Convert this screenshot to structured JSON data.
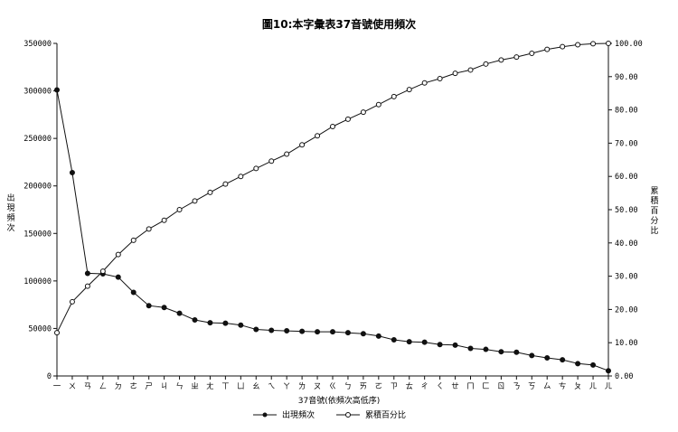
{
  "chart_data": {
    "type": "line",
    "title": "圖10:本字彙表37音號使用頻次",
    "xlabel": "37音號(依頻次高低序)",
    "ylabel_left": "出現頻次",
    "ylabel_right": "累積百分比",
    "categories": [
      "一",
      "ㄨ",
      "ㄢ",
      "ㄥ",
      "ㄉ",
      "ㄜ",
      "ㄕ",
      "ㄐ",
      "ㄣ",
      "ㄓ",
      "ㄤ",
      "ㄒ",
      "ㄩ",
      "ㄠ",
      "ㄟ",
      "ㄚ",
      "ㄌ",
      "ㄡ",
      "ㄍ",
      "ㄅ",
      "ㄞ",
      "ㄛ",
      "ㄗ",
      "ㄊ",
      "ㄔ",
      "ㄑ",
      "ㄝ",
      "ㄇ",
      "ㄈ",
      "ㄖ",
      "ㄋ",
      "ㄎ",
      "ㄙ",
      "ㄘ",
      "ㄆ",
      "ㄦ",
      "ㄦ"
    ],
    "ylim_left": [
      0,
      350000
    ],
    "yticks_left": [
      "0",
      "50000",
      "100000",
      "150000",
      "200000",
      "250000",
      "300000",
      "350000"
    ],
    "ylim_right": [
      0,
      100
    ],
    "yticks_right": [
      "0.00",
      "10.00",
      "20.00",
      "30.00",
      "40.00",
      "50.00",
      "60.00",
      "70.00",
      "80.00",
      "90.00",
      "100.00"
    ],
    "series": [
      {
        "name": "出現頻次",
        "axis": "left",
        "marker": "filled",
        "values": [
          301000,
          214000,
          108000,
          107500,
          104000,
          88000,
          74000,
          72000,
          66000,
          59000,
          56000,
          55500,
          53500,
          49000,
          48000,
          47500,
          47000,
          46500,
          46500,
          45500,
          44500,
          42000,
          38000,
          36000,
          35500,
          33000,
          32500,
          29000,
          28000,
          25500,
          25000,
          21500,
          19000,
          17000,
          13000,
          11500,
          5500
        ]
      },
      {
        "name": "累積百分比",
        "axis": "right",
        "marker": "open",
        "values": [
          13.0,
          22.3,
          27.0,
          31.5,
          36.5,
          40.8,
          44.2,
          46.8,
          50.0,
          52.6,
          55.2,
          57.7,
          60.0,
          62.4,
          64.6,
          66.7,
          69.5,
          72.2,
          75.0,
          77.2,
          79.3,
          81.6,
          84.0,
          86.1,
          88.1,
          89.4,
          91.0,
          92.0,
          93.8,
          95.0,
          95.9,
          97.0,
          98.2,
          99.0,
          99.6,
          99.9,
          100.0
        ]
      }
    ],
    "legend_position": "bottom",
    "grid": false
  }
}
